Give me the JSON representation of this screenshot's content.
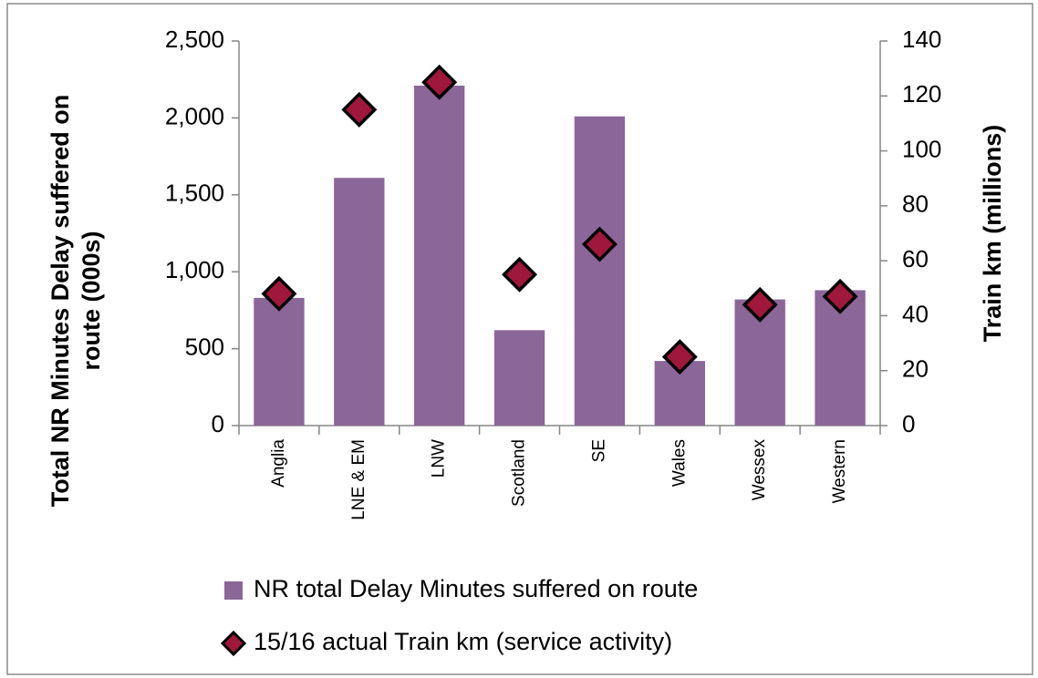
{
  "chart_data": {
    "type": "bar",
    "categories": [
      "Anglia",
      "LNE & EM",
      "LNW",
      "Scotland",
      "SE",
      "Wales",
      "Wessex",
      "Western"
    ],
    "series": [
      {
        "name": "NR total Delay Minutes suffered on route",
        "type": "bar",
        "color": "#8b6699",
        "values": [
          830,
          1610,
          2210,
          620,
          2010,
          420,
          820,
          880
        ]
      },
      {
        "name": "15/16 actual Train km (service activity)",
        "type": "scatter",
        "marker": "diamond",
        "axis": "y2",
        "color": "#a0173c",
        "values": [
          48,
          115,
          125,
          55,
          66,
          25,
          44,
          47
        ]
      }
    ],
    "ylabel": [
      "Total NR Minutes Delay suffered on",
      "route  (000s)"
    ],
    "y2label": "Train km (millions)",
    "ylim": [
      0,
      2500
    ],
    "yticks": [
      0,
      500,
      {
        "value": 1000,
        "label": "1,000"
      },
      {
        "value": 1500,
        "label": "1,500"
      },
      {
        "value": 2000,
        "label": "2,000"
      },
      {
        "value": 2500,
        "label": "2,500"
      }
    ],
    "y2lim": [
      0,
      140
    ],
    "y2ticks": [
      0,
      20,
      40,
      60,
      80,
      100,
      120,
      140
    ],
    "legend": "bottom"
  }
}
